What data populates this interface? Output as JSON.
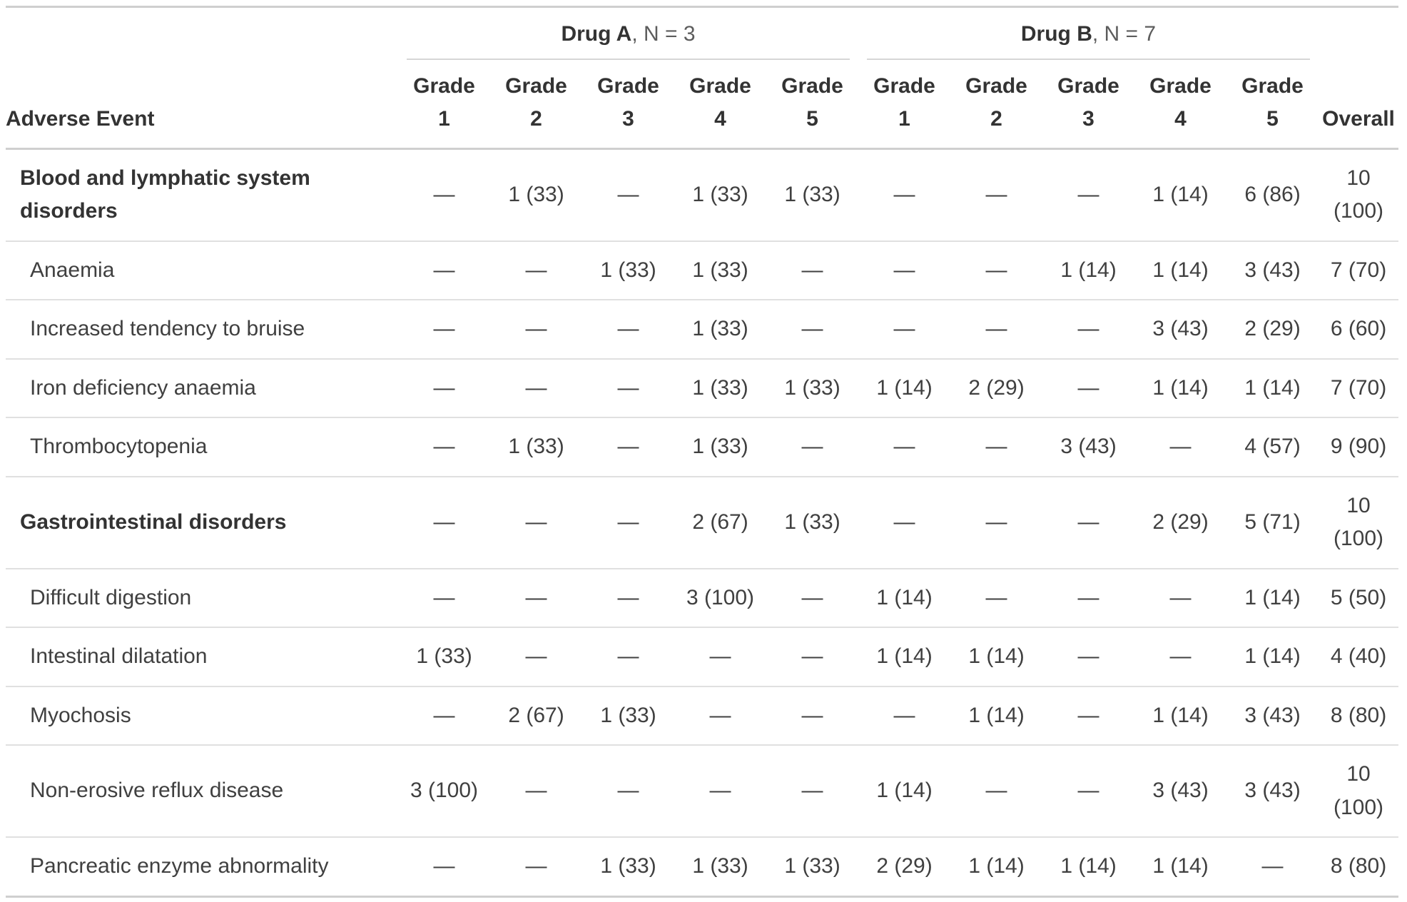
{
  "chart_data": {
    "type": "table",
    "row_header": "Adverse Event",
    "overall_column": "Overall",
    "empty_cell_symbol": "—",
    "column_groups": [
      {
        "name": "Drug A",
        "n_label": ", N = 3",
        "columns": [
          "Grade 1",
          "Grade 2",
          "Grade 3",
          "Grade 4",
          "Grade 5"
        ]
      },
      {
        "name": "Drug B",
        "n_label": ", N = 7",
        "columns": [
          "Grade 1",
          "Grade 2",
          "Grade 3",
          "Grade 4",
          "Grade 5"
        ]
      }
    ],
    "rows": [
      {
        "label": "Blood and lymphatic system disorders",
        "group": true,
        "values": [
          "—",
          "1 (33)",
          "—",
          "1 (33)",
          "1 (33)",
          "—",
          "—",
          "—",
          "1 (14)",
          "6 (86)",
          "10 (100)"
        ]
      },
      {
        "label": "Anaemia",
        "group": false,
        "values": [
          "—",
          "—",
          "1 (33)",
          "1 (33)",
          "—",
          "—",
          "—",
          "1 (14)",
          "1 (14)",
          "3 (43)",
          "7 (70)"
        ]
      },
      {
        "label": "Increased tendency to bruise",
        "group": false,
        "values": [
          "—",
          "—",
          "—",
          "1 (33)",
          "—",
          "—",
          "—",
          "—",
          "3 (43)",
          "2 (29)",
          "6 (60)"
        ]
      },
      {
        "label": "Iron deficiency anaemia",
        "group": false,
        "values": [
          "—",
          "—",
          "—",
          "1 (33)",
          "1 (33)",
          "1 (14)",
          "2 (29)",
          "—",
          "1 (14)",
          "1 (14)",
          "7 (70)"
        ]
      },
      {
        "label": "Thrombocytopenia",
        "group": false,
        "values": [
          "—",
          "1 (33)",
          "—",
          "1 (33)",
          "—",
          "—",
          "—",
          "3 (43)",
          "—",
          "4 (57)",
          "9 (90)"
        ]
      },
      {
        "label": "Gastrointestinal disorders",
        "group": true,
        "values": [
          "—",
          "—",
          "—",
          "2 (67)",
          "1 (33)",
          "—",
          "—",
          "—",
          "2 (29)",
          "5 (71)",
          "10 (100)"
        ]
      },
      {
        "label": "Difficult digestion",
        "group": false,
        "values": [
          "—",
          "—",
          "—",
          "3 (100)",
          "—",
          "1 (14)",
          "—",
          "—",
          "—",
          "1 (14)",
          "5 (50)"
        ]
      },
      {
        "label": "Intestinal dilatation",
        "group": false,
        "values": [
          "1 (33)",
          "—",
          "—",
          "—",
          "—",
          "1 (14)",
          "1 (14)",
          "—",
          "—",
          "1 (14)",
          "4 (40)"
        ]
      },
      {
        "label": "Myochosis",
        "group": false,
        "values": [
          "—",
          "2 (67)",
          "1 (33)",
          "—",
          "—",
          "—",
          "1 (14)",
          "—",
          "1 (14)",
          "3 (43)",
          "8 (80)"
        ]
      },
      {
        "label": "Non-erosive reflux disease",
        "group": false,
        "values": [
          "3 (100)",
          "—",
          "—",
          "—",
          "—",
          "1 (14)",
          "—",
          "—",
          "3 (43)",
          "3 (43)",
          "10 (100)"
        ]
      },
      {
        "label": "Pancreatic enzyme abnormality",
        "group": false,
        "values": [
          "—",
          "—",
          "1 (33)",
          "1 (33)",
          "1 (33)",
          "2 (29)",
          "1 (14)",
          "1 (14)",
          "1 (14)",
          "—",
          "8 (80)"
        ]
      }
    ]
  },
  "colors": {
    "heavy_border": "#cfcfcf",
    "row_border": "#e0e0e0",
    "spanner_underline": "#d6d6d6",
    "header_text": "#333333",
    "body_text": "#404040",
    "n_label_text": "#5c5c5c"
  }
}
